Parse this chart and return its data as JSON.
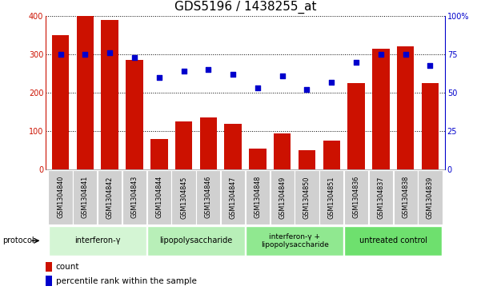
{
  "title": "GDS5196 / 1438255_at",
  "samples": [
    "GSM1304840",
    "GSM1304841",
    "GSM1304842",
    "GSM1304843",
    "GSM1304844",
    "GSM1304845",
    "GSM1304846",
    "GSM1304847",
    "GSM1304848",
    "GSM1304849",
    "GSM1304850",
    "GSM1304851",
    "GSM1304836",
    "GSM1304837",
    "GSM1304838",
    "GSM1304839"
  ],
  "counts": [
    350,
    400,
    390,
    285,
    80,
    125,
    135,
    120,
    55,
    95,
    50,
    75,
    225,
    315,
    320,
    225
  ],
  "percentile_ranks": [
    75,
    75,
    76,
    73,
    60,
    64,
    65,
    62,
    53,
    61,
    52,
    57,
    70,
    75,
    75,
    68
  ],
  "protocol_groups": [
    {
      "label": "interferon-γ",
      "start": 0,
      "end": 3,
      "color": "#d4f5d4"
    },
    {
      "label": "lipopolysaccharide",
      "start": 4,
      "end": 7,
      "color": "#b8efb8"
    },
    {
      "label": "interferon-γ +\nlipopolysaccharide",
      "start": 8,
      "end": 11,
      "color": "#90e890"
    },
    {
      "label": "untreated control",
      "start": 12,
      "end": 15,
      "color": "#6ee06e"
    }
  ],
  "bar_color": "#cc1100",
  "dot_color": "#0000cc",
  "left_axis_color": "#cc1100",
  "right_axis_color": "#0000cc",
  "ylim_left": [
    0,
    400
  ],
  "ylim_right": [
    0,
    100
  ],
  "yticks_left": [
    0,
    100,
    200,
    300,
    400
  ],
  "yticks_right": [
    0,
    25,
    50,
    75,
    100
  ],
  "ytick_labels_right": [
    "0",
    "25",
    "50",
    "75",
    "100%"
  ],
  "label_box_color": "#d0d0d0",
  "legend_count_label": "count",
  "legend_pct_label": "percentile rank within the sample",
  "protocol_label": "protocol",
  "title_fontsize": 11,
  "tick_fontsize": 7,
  "sample_fontsize": 5.8,
  "proto_fontsize": 7,
  "legend_fontsize": 7.5
}
